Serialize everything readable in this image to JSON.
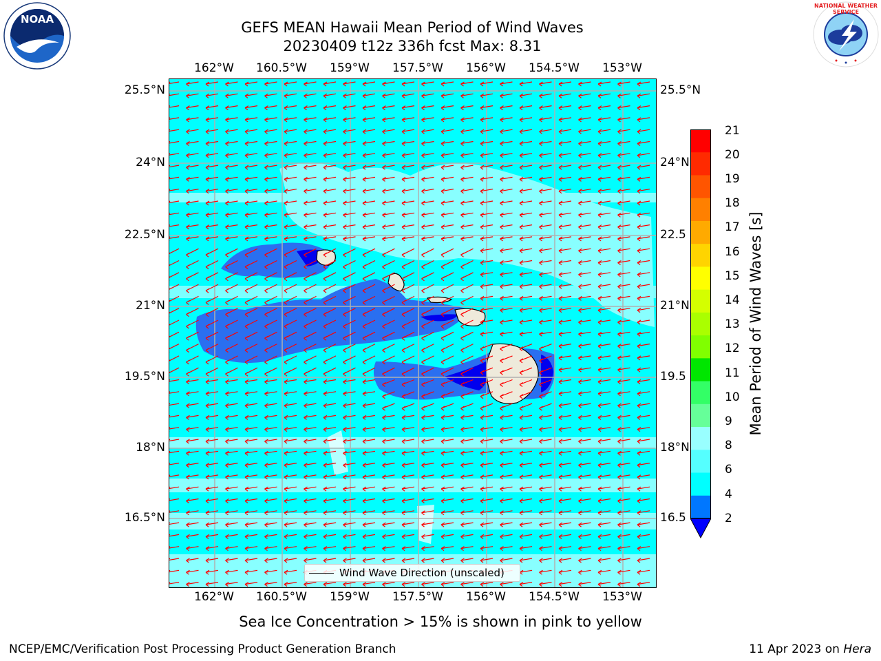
{
  "title": {
    "line1": "GEFS MEAN Hawaii Mean Period of Wind Waves",
    "line2": "20230409 t12z 336h fcst   Max: 8.31"
  },
  "logos": {
    "left": {
      "text": "NOAA",
      "icon": "noaa-logo"
    },
    "right": {
      "text": "NATIONAL WEATHER SERVICE",
      "icon": "nws-logo"
    }
  },
  "map": {
    "lon_labels": [
      "162°W",
      "160.5°W",
      "159°W",
      "157.5°W",
      "156°W",
      "154.5°W",
      "153°W"
    ],
    "lat_labels": [
      "25.5°N",
      "24°N",
      "22.5°N",
      "21°N",
      "19.5°N",
      "18°N",
      "16.5°N"
    ],
    "lat_labels_right": [
      "25.5°N",
      "24°N",
      "22.5",
      "21°N",
      "19.5",
      "18°N",
      "16.5"
    ],
    "background_color": "#00ffff",
    "arrow_color": "#ff0000",
    "legend_label": "Wind Wave Direction (unscaled)"
  },
  "colorbar": {
    "title": "Mean Period of Wind Waves [s]",
    "ticks": [
      "21",
      "20",
      "19",
      "18",
      "17",
      "16",
      "15",
      "14",
      "13",
      "12",
      "11",
      "10",
      "9",
      "8",
      "6",
      "4",
      "2"
    ],
    "colors": [
      "#ff0000",
      "#ff2a00",
      "#ff5500",
      "#ff8000",
      "#ffaa00",
      "#ffd400",
      "#ffff00",
      "#d4ff00",
      "#aaff00",
      "#80ff00",
      "#00e600",
      "#33ff66",
      "#66ff99",
      "#99ffff",
      "#55ffff",
      "#00ffff",
      "#0077ff"
    ],
    "extend_color": "#0000ff"
  },
  "ice_note": "Sea Ice Concentration > 15% is shown in pink to yellow",
  "footer": {
    "left": "NCEP/EMC/Verification Post Processing Product Generation Branch",
    "right_date": "11 Apr 2023 on ",
    "right_host": "Hera"
  }
}
